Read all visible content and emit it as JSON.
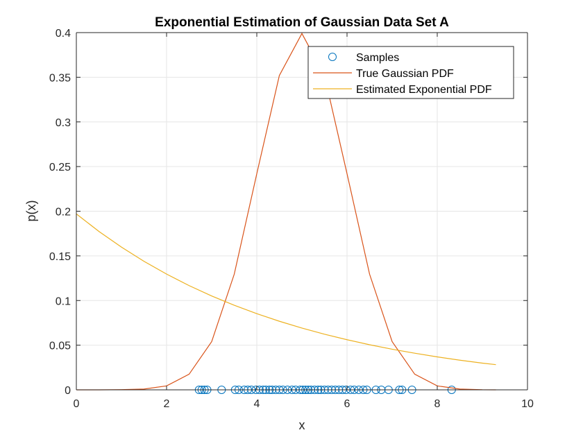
{
  "chart_data": {
    "type": "line",
    "title": "Exponential Estimation of Gaussian Data Set A",
    "xlabel": "x",
    "ylabel": "p(x)",
    "xlim": [
      0,
      10
    ],
    "ylim": [
      0,
      0.4
    ],
    "xticks": [
      0,
      2,
      4,
      6,
      8,
      10
    ],
    "xtick_labels": [
      "0",
      "2",
      "4",
      "6",
      "8",
      "10"
    ],
    "yticks": [
      0,
      0.05,
      0.1,
      0.15,
      0.2,
      0.25,
      0.3,
      0.35,
      0.4
    ],
    "ytick_labels": [
      "0",
      "0.05",
      "0.1",
      "0.15",
      "0.2",
      "0.25",
      "0.3",
      "0.35",
      "0.4"
    ],
    "grid": true,
    "legend_position": "top-right",
    "series": [
      {
        "name": "Samples",
        "kind": "scatter",
        "marker": "circle-open",
        "color": "#0072BD",
        "x": [
          2.72,
          2.78,
          2.84,
          2.9,
          3.22,
          3.52,
          3.6,
          3.72,
          3.8,
          3.88,
          3.98,
          4.06,
          4.14,
          4.2,
          4.28,
          4.34,
          4.42,
          4.5,
          4.58,
          4.68,
          4.78,
          4.86,
          4.96,
          5.02,
          5.08,
          5.14,
          5.2,
          5.28,
          5.36,
          5.42,
          5.5,
          5.58,
          5.66,
          5.74,
          5.82,
          5.9,
          5.98,
          6.08,
          6.16,
          6.26,
          6.36,
          6.44,
          6.64,
          6.76,
          6.92,
          7.16,
          7.22,
          7.44,
          8.32
        ],
        "y": [
          0,
          0,
          0,
          0,
          0,
          0,
          0,
          0,
          0,
          0,
          0,
          0,
          0,
          0,
          0,
          0,
          0,
          0,
          0,
          0,
          0,
          0,
          0,
          0,
          0,
          0,
          0,
          0,
          0,
          0,
          0,
          0,
          0,
          0,
          0,
          0,
          0,
          0,
          0,
          0,
          0,
          0,
          0,
          0,
          0,
          0,
          0,
          0,
          0
        ]
      },
      {
        "name": "True Gaussian PDF",
        "kind": "line",
        "color": "#D95319",
        "x": [
          0,
          0.5,
          1.0,
          1.5,
          2.0,
          2.5,
          3.0,
          3.5,
          4.0,
          4.5,
          5.0,
          5.5,
          6.0,
          6.5,
          7.0,
          7.5,
          8.0,
          8.5,
          9.0,
          9.3
        ],
        "y": [
          0,
          0,
          0.0002,
          0.0009,
          0.0044,
          0.0175,
          0.054,
          0.1295,
          0.242,
          0.352,
          0.399,
          0.352,
          0.242,
          0.1295,
          0.054,
          0.0175,
          0.0044,
          0.0009,
          0.0001,
          0
        ]
      },
      {
        "name": "Estimated Exponential PDF",
        "kind": "line",
        "color": "#EDB120",
        "x": [
          0,
          0.5,
          1.0,
          1.5,
          2.0,
          2.5,
          3.0,
          3.5,
          4.0,
          4.5,
          5.0,
          5.5,
          6.0,
          6.5,
          7.0,
          7.5,
          8.0,
          8.5,
          9.0,
          9.3
        ],
        "y": [
          0.197,
          0.1774,
          0.1598,
          0.1439,
          0.1296,
          0.1167,
          0.1051,
          0.0947,
          0.0853,
          0.0768,
          0.0692,
          0.0623,
          0.0561,
          0.0505,
          0.0455,
          0.041,
          0.0369,
          0.0332,
          0.0299,
          0.0282
        ]
      }
    ]
  }
}
